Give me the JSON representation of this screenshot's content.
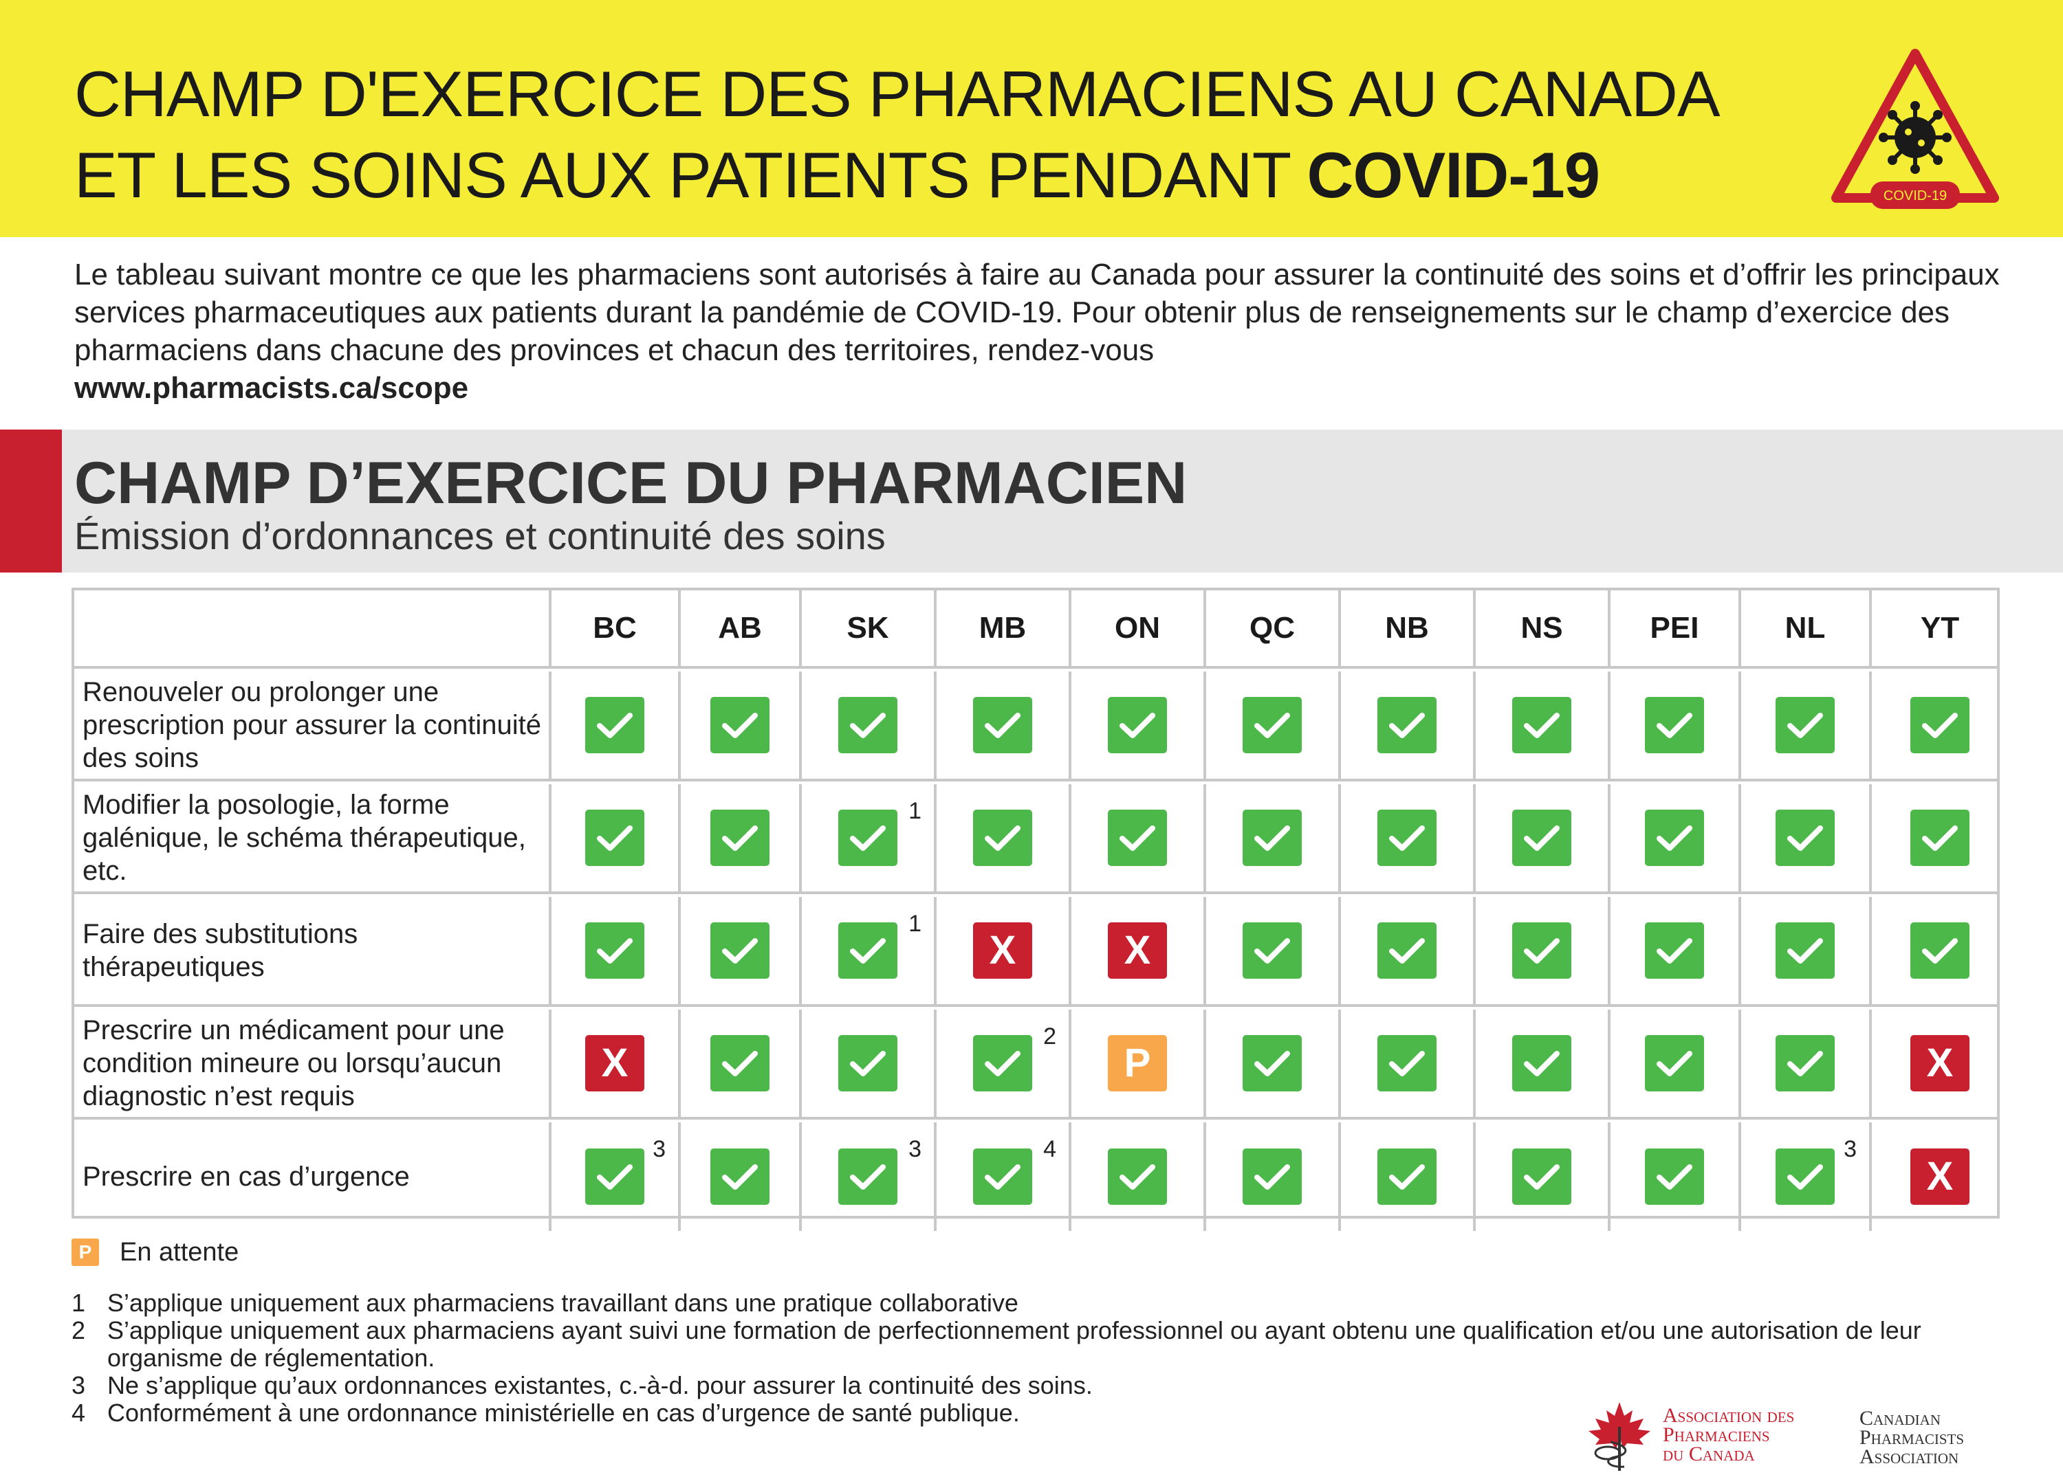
{
  "header": {
    "title_line1": "CHAMP D'EXERCICE DES PHARMACIENS AU CANADA",
    "title_line2_plain": "ET LES SOINS AUX PATIENTS PENDANT ",
    "title_line2_bold": "COVID-19",
    "badge_label": "COVID-19",
    "badge_color": "#c8202f",
    "background_color": "#f5ec35"
  },
  "intro": {
    "text": "Le tableau suivant montre ce que les pharmaciens sont autorisés à faire au Canada pour assurer la continuité des soins et d’offrir les principaux services pharmaceutiques aux patients durant la pandémie de COVID-19. Pour obtenir plus de renseignements sur le champ d’exercice des pharmaciens dans chacune des provinces et chacun des territoires, rendez-vous",
    "url": "www.pharmacists.ca/scope"
  },
  "section": {
    "title": "CHAMP D’EXERCICE DU PHARMACIEN",
    "subtitle": "Émission d’ordonnances et continuité des soins",
    "accent_color": "#c8202f"
  },
  "table": {
    "columns": [
      "BC",
      "AB",
      "SK",
      "MB",
      "ON",
      "QC",
      "NB",
      "NS",
      "PEI",
      "NL",
      "YT"
    ],
    "rows": [
      {
        "label": "Renouveler ou prolonger une prescription pour assurer la continuité des soins",
        "cells": [
          {
            "status": "check"
          },
          {
            "status": "check"
          },
          {
            "status": "check"
          },
          {
            "status": "check"
          },
          {
            "status": "check"
          },
          {
            "status": "check"
          },
          {
            "status": "check"
          },
          {
            "status": "check"
          },
          {
            "status": "check"
          },
          {
            "status": "check"
          },
          {
            "status": "check"
          }
        ]
      },
      {
        "label": "Modifier la posologie, la forme galénique, le schéma thérapeutique, etc.",
        "cells": [
          {
            "status": "check"
          },
          {
            "status": "check"
          },
          {
            "status": "check",
            "note": "1"
          },
          {
            "status": "check"
          },
          {
            "status": "check"
          },
          {
            "status": "check"
          },
          {
            "status": "check"
          },
          {
            "status": "check"
          },
          {
            "status": "check"
          },
          {
            "status": "check"
          },
          {
            "status": "check"
          }
        ]
      },
      {
        "label": "Faire des substitutions thérapeutiques",
        "cells": [
          {
            "status": "check"
          },
          {
            "status": "check"
          },
          {
            "status": "check",
            "note": "1"
          },
          {
            "status": "x",
            "glyph": "X"
          },
          {
            "status": "x",
            "glyph": "X"
          },
          {
            "status": "check"
          },
          {
            "status": "check"
          },
          {
            "status": "check"
          },
          {
            "status": "check"
          },
          {
            "status": "check"
          },
          {
            "status": "check"
          }
        ]
      },
      {
        "label": "Prescrire un médicament pour une condition mineure ou lorsqu’aucun diagnostic n’est requis",
        "cells": [
          {
            "status": "x",
            "glyph": "X"
          },
          {
            "status": "check"
          },
          {
            "status": "check"
          },
          {
            "status": "check",
            "note": "2"
          },
          {
            "status": "p",
            "glyph": "P"
          },
          {
            "status": "check"
          },
          {
            "status": "check"
          },
          {
            "status": "check"
          },
          {
            "status": "check"
          },
          {
            "status": "check"
          },
          {
            "status": "x",
            "glyph": "X"
          }
        ]
      },
      {
        "label": "Prescrire en cas d’urgence",
        "cells": [
          {
            "status": "check",
            "note": "3"
          },
          {
            "status": "check"
          },
          {
            "status": "check",
            "note": "3"
          },
          {
            "status": "check",
            "note": "4"
          },
          {
            "status": "check"
          },
          {
            "status": "check"
          },
          {
            "status": "check"
          },
          {
            "status": "check"
          },
          {
            "status": "check"
          },
          {
            "status": "check",
            "note": "3"
          },
          {
            "status": "x",
            "glyph": "X"
          }
        ]
      }
    ],
    "status_colors": {
      "check": "#4db84a",
      "x": "#c8202f",
      "p": "#f8a84a"
    }
  },
  "legend": {
    "glyph": "P",
    "label": "En attente"
  },
  "footnotes": [
    {
      "num": "1",
      "text": "S’applique uniquement aux pharmaciens travaillant dans une pratique collaborative"
    },
    {
      "num": "2",
      "text": "S’applique uniquement aux pharmaciens ayant suivi une formation de perfectionnement professionnel ou ayant obtenu une qualification et/ou une autorisation de leur organisme de réglementation."
    },
    {
      "num": "3",
      "text": "Ne s’applique qu’aux ordonnances existantes, c.-à-d. pour assurer la continuité des soins."
    },
    {
      "num": "4",
      "text": "Conformément à une ordonnance ministérielle en cas d’urgence de santé publique."
    }
  ],
  "logo": {
    "fr_line1": "Association des",
    "fr_line2": "Pharmaciens",
    "fr_line3": "du Canada",
    "en_line1": "Canadian",
    "en_line2": "Pharmacists",
    "en_line3": "Association",
    "icon": "maple-leaf-caduceus-icon"
  }
}
